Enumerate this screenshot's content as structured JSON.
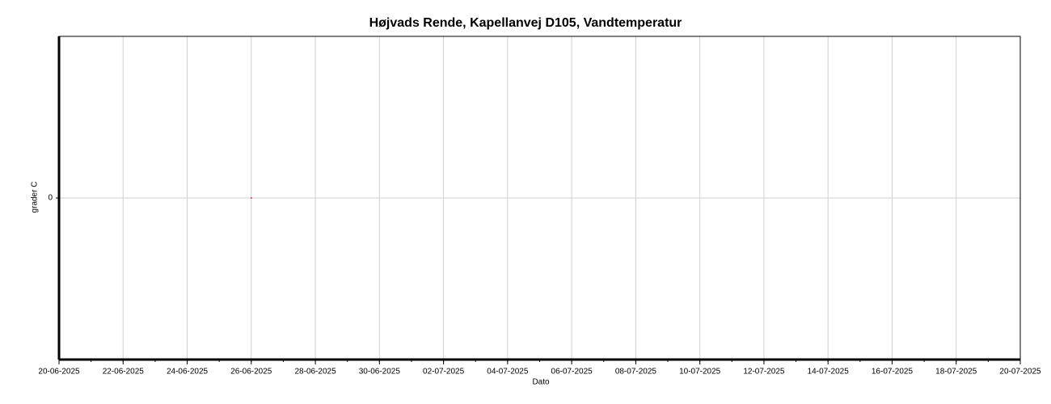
{
  "chart_data": {
    "type": "scatter",
    "title": "Højvads Rende, Kapellanvej D105, Vandtemperatur",
    "x_label": "Dato",
    "y_label": "grader C",
    "series": [
      {
        "name": "Vandtemperatur",
        "color": "#d04040",
        "x": [
          "26-06-2025"
        ],
        "values": [
          0
        ]
      }
    ],
    "xlim": [
      "20-06-2025",
      "20-07-2025"
    ],
    "xticks": [
      "20-06-2025",
      "22-06-2025",
      "24-06-2025",
      "26-06-2025",
      "28-06-2025",
      "30-06-2025",
      "02-07-2025",
      "04-07-2025",
      "06-07-2025",
      "08-07-2025",
      "10-07-2025",
      "12-07-2025",
      "14-07-2025",
      "16-07-2025",
      "18-07-2025",
      "20-07-2025"
    ],
    "ylim": [
      -1,
      1
    ],
    "yticks": [
      0
    ],
    "grid": true
  }
}
